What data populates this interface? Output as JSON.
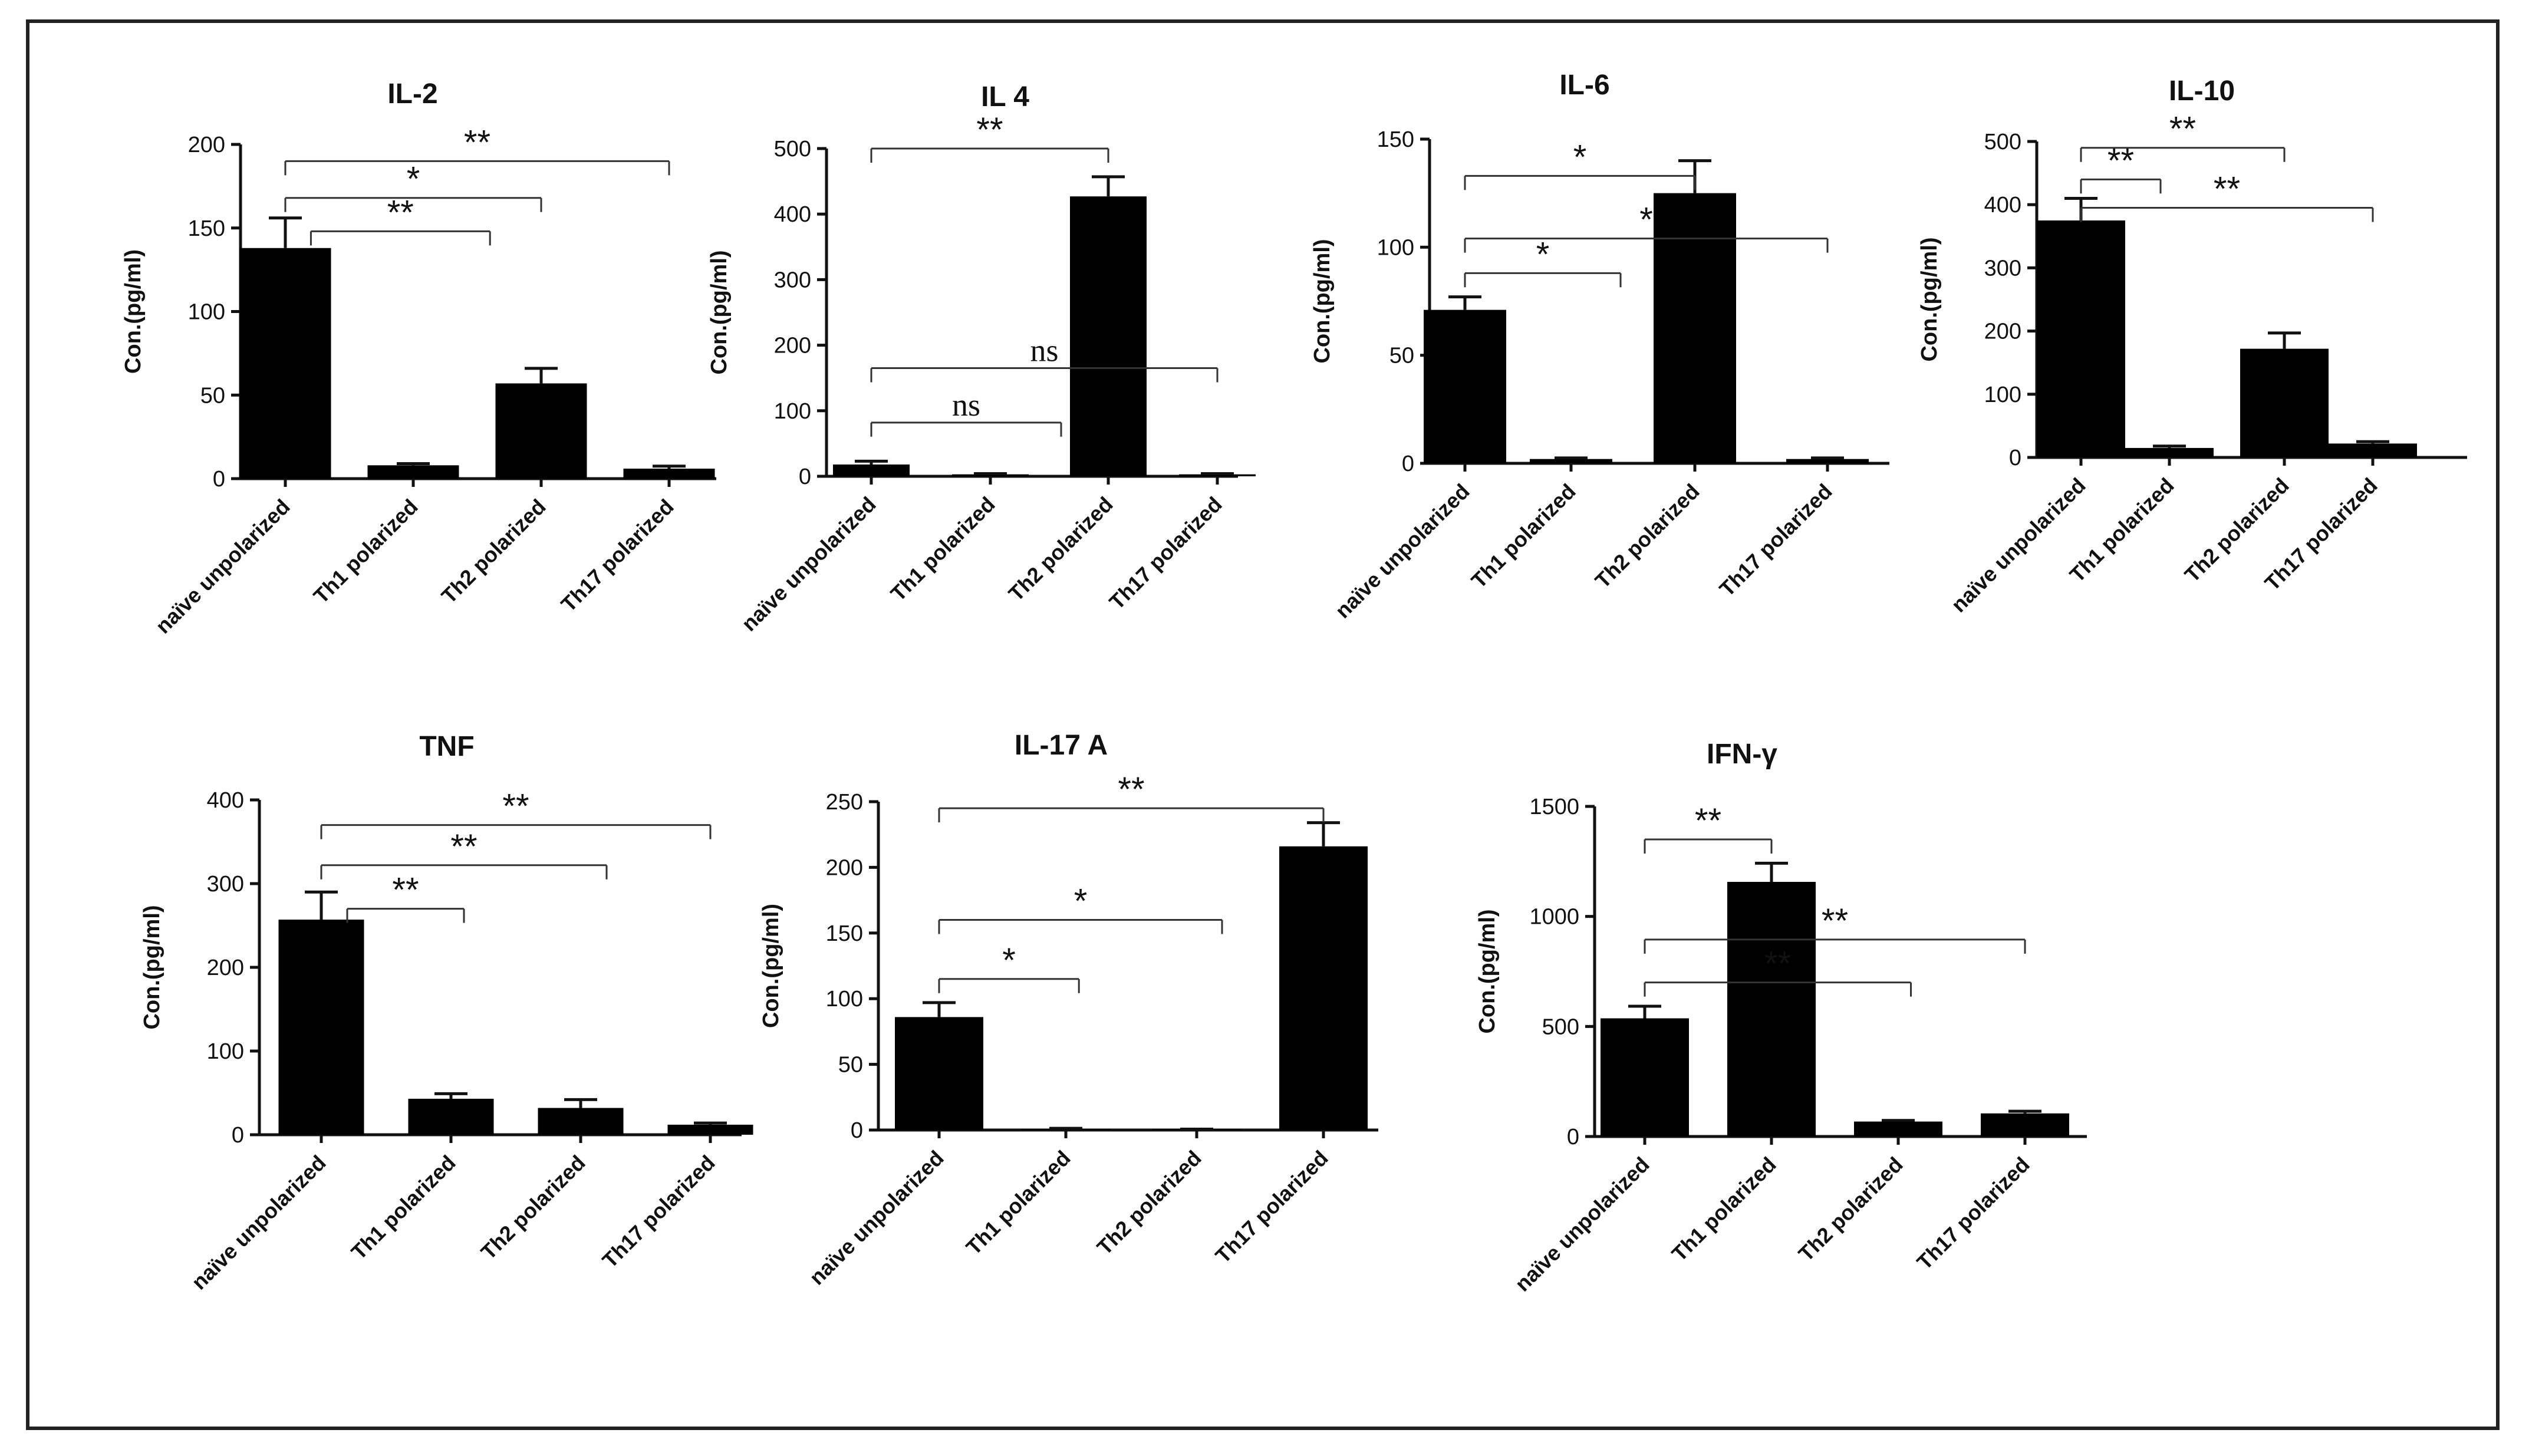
{
  "chart_data": [
    {
      "type": "bar",
      "title": "IL-2",
      "ylabel": "Con.(pg/ml)",
      "ylim": [
        0,
        200
      ],
      "yticks": [
        0,
        50,
        100,
        150,
        200
      ],
      "categories": [
        "naïve unpolarized",
        "Th1 polarized",
        "Th2 polarized",
        "Th17 polarized"
      ],
      "values": [
        138,
        8,
        57,
        6
      ],
      "errors": [
        18,
        1,
        9,
        1.5
      ],
      "significance": [
        {
          "from": 0,
          "to": 3,
          "y": 190,
          "label": "**"
        },
        {
          "from": 0,
          "to": 2,
          "y": 168,
          "label": "*"
        },
        {
          "from": 0.2,
          "to": 1.6,
          "y": 148,
          "label": "**"
        }
      ]
    },
    {
      "type": "bar",
      "title": "IL 4",
      "ylabel": "Con.(pg/ml)",
      "ylim": [
        0,
        500
      ],
      "yticks": [
        0,
        100,
        200,
        300,
        400,
        500
      ],
      "categories": [
        "naïve unpolarized",
        "Th1 polarized",
        "Th2 polarized",
        "Th17 polarized"
      ],
      "values": [
        18,
        3,
        427,
        3
      ],
      "errors": [
        5,
        1,
        30,
        1
      ],
      "significance": [
        {
          "from": 0,
          "to": 2,
          "y": 500,
          "label": "**"
        },
        {
          "from": 0,
          "to": 3,
          "y": 165,
          "label": "ns"
        },
        {
          "from": 0,
          "to": 1.6,
          "y": 82,
          "label": "ns"
        }
      ]
    },
    {
      "type": "bar",
      "title": "IL-6",
      "ylabel": "Con.(pg/ml)",
      "ylim": [
        0,
        150
      ],
      "yticks": [
        0,
        50,
        100,
        150
      ],
      "categories": [
        "naïve unpolarized",
        "Th1 polarized",
        "Th2 polarized",
        "Th17 polarized"
      ],
      "values": [
        71,
        2,
        125,
        2
      ],
      "errors": [
        6,
        0.5,
        15,
        0.5
      ],
      "significance": [
        {
          "from": 0,
          "to": 2,
          "y": 133,
          "label": "*"
        },
        {
          "from": 0,
          "to": 3,
          "y": 104,
          "label": "*"
        },
        {
          "from": 0,
          "to": 1.4,
          "y": 88,
          "label": "*"
        }
      ]
    },
    {
      "type": "bar",
      "title": "IL-10",
      "ylabel": "Con.(pg/ml)",
      "ylim": [
        0,
        500
      ],
      "yticks": [
        0,
        100,
        200,
        300,
        400,
        500
      ],
      "categories": [
        "naïve unpolarized",
        "Th1 polarized",
        "Th2 polarized",
        "Th17 polarized"
      ],
      "values": [
        375,
        15,
        172,
        22
      ],
      "errors": [
        35,
        3,
        25,
        3
      ],
      "significance": [
        {
          "from": 0,
          "to": 2,
          "y": 490,
          "label": "**"
        },
        {
          "from": 0,
          "to": 0.9,
          "y": 440,
          "label": "**"
        },
        {
          "from": 0,
          "to": 3,
          "y": 395,
          "label": "**"
        }
      ]
    },
    {
      "type": "bar",
      "title": "TNF",
      "ylabel": "Con.(pg/ml)",
      "ylim": [
        0,
        400
      ],
      "yticks": [
        0,
        100,
        200,
        300,
        400
      ],
      "categories": [
        "naïve unpolarized",
        "Th1 polarized",
        "Th2 polarized",
        "Th17 polarized"
      ],
      "values": [
        257,
        43,
        32,
        12
      ],
      "errors": [
        33,
        6,
        10,
        2
      ],
      "significance": [
        {
          "from": 0,
          "to": 3,
          "y": 370,
          "label": "**"
        },
        {
          "from": 0,
          "to": 2.2,
          "y": 322,
          "label": "**"
        },
        {
          "from": 0.2,
          "to": 1.1,
          "y": 270,
          "label": "**"
        }
      ]
    },
    {
      "type": "bar",
      "title": "IL-17 A",
      "ylabel": "Con.(pg/ml)",
      "ylim": [
        0,
        250
      ],
      "yticks": [
        0,
        50,
        100,
        150,
        200,
        250
      ],
      "categories": [
        "naïve unpolarized",
        "Th1 polarized",
        "Th2 polarized",
        "Th17 polarized"
      ],
      "values": [
        86,
        1,
        0.5,
        216
      ],
      "errors": [
        11,
        0.3,
        0.2,
        18
      ],
      "significance": [
        {
          "from": 0,
          "to": 3,
          "y": 245,
          "label": "**"
        },
        {
          "from": 0,
          "to": 2.2,
          "y": 160,
          "label": "*"
        },
        {
          "from": 0,
          "to": 1.1,
          "y": 115,
          "label": "*"
        }
      ]
    },
    {
      "type": "bar",
      "title": "IFN-γ",
      "ylabel": "Con.(pg/ml)",
      "ylim": [
        0,
        1500
      ],
      "yticks": [
        0,
        500,
        1000,
        1500
      ],
      "categories": [
        "naïve unpolarized",
        "Th1 polarized",
        "Th2 polarized",
        "Th17 polarized"
      ],
      "values": [
        537,
        1157,
        68,
        105
      ],
      "errors": [
        55,
        85,
        5,
        10
      ],
      "significance": [
        {
          "from": 0,
          "to": 1,
          "y": 1350,
          "label": "**"
        },
        {
          "from": 0,
          "to": 3,
          "y": 895,
          "label": "**"
        },
        {
          "from": 0,
          "to": 2.1,
          "y": 700,
          "label": "**"
        }
      ]
    }
  ]
}
